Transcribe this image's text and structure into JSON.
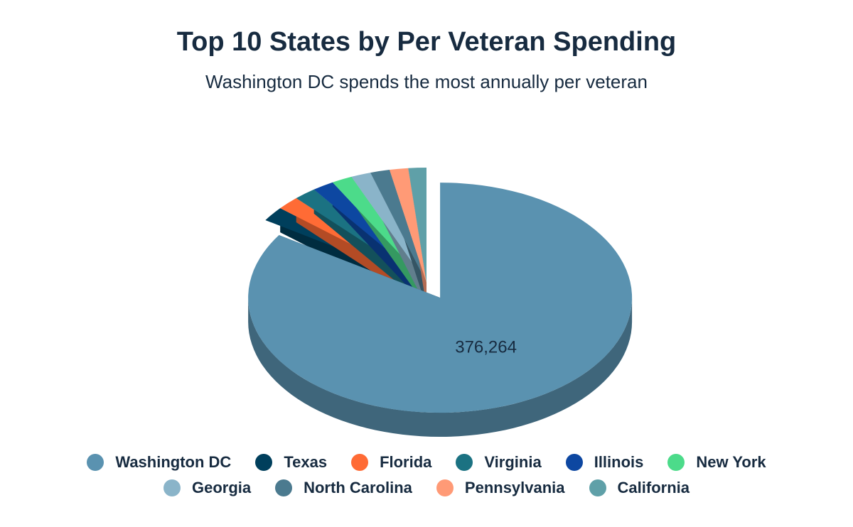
{
  "chart_data": {
    "type": "pie",
    "title": "Top 10 States by Per Veteran Spending",
    "subtitle": "Washington DC spends the most annually per veteran",
    "slices": [
      {
        "name": "Washington DC",
        "value": 376264,
        "color": "#5a92b0",
        "label": "376,264"
      },
      {
        "name": "Texas",
        "value": 9200,
        "color": "#003f5c",
        "label": ""
      },
      {
        "name": "Florida",
        "value": 8600,
        "color": "#ff6b35",
        "label": ""
      },
      {
        "name": "Virginia",
        "value": 8500,
        "color": "#1b7282",
        "label": ""
      },
      {
        "name": "Illinois",
        "value": 8200,
        "color": "#0d47a1",
        "label": ""
      },
      {
        "name": "New York",
        "value": 7800,
        "color": "#4cdb8a",
        "label": ""
      },
      {
        "name": "Georgia",
        "value": 7500,
        "color": "#8ab4c9",
        "label": ""
      },
      {
        "name": "North Carolina",
        "value": 7300,
        "color": "#4b7a8f",
        "label": ""
      },
      {
        "name": "Pennsylvania",
        "value": 7000,
        "color": "#ff9a76",
        "label": ""
      },
      {
        "name": "California",
        "value": 6800,
        "color": "#5fa0a8",
        "label": ""
      }
    ],
    "legend_position": "bottom"
  }
}
